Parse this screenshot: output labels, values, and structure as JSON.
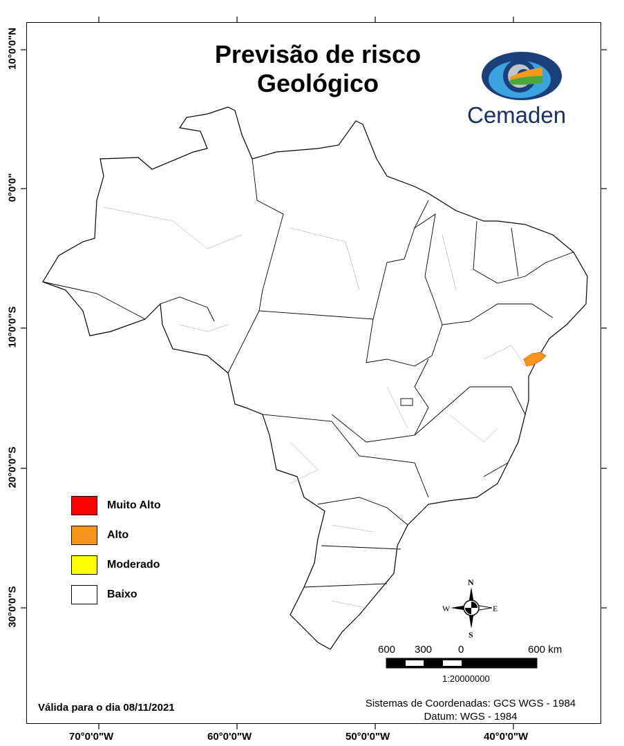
{
  "title": {
    "line1": "Previsão de risco",
    "line2": "Geológico"
  },
  "logo": {
    "text": "Cemaden"
  },
  "axes": {
    "lon_labels": [
      "70°0'0\"W",
      "60°0'0\"W",
      "50°0'0\"W",
      "40°0'0\"W"
    ],
    "lat_labels": [
      "10°0'0\"N",
      "0°0'0\"",
      "10°0'0\"S",
      "20°0'0\"S",
      "30°0'0\"S"
    ]
  },
  "legend": [
    {
      "label": "Muito Alto",
      "color": "#ff0000"
    },
    {
      "label": "Alto",
      "color": "#f7941d"
    },
    {
      "label": "Moderado",
      "color": "#ffff00"
    },
    {
      "label": "Baixo",
      "color": "#ffffff"
    }
  ],
  "compass": {
    "n": "N",
    "s": "S",
    "e": "E",
    "w": "W"
  },
  "scale": {
    "labels": [
      "600",
      "300",
      "0",
      "600 km"
    ],
    "ratio": "1:20000000"
  },
  "validity": "Válida para o dia 08/11/2021",
  "coords": {
    "system": "Sistemas de Coordenadas: GCS WGS - 1984",
    "datum": "Datum: WGS - 1984"
  }
}
